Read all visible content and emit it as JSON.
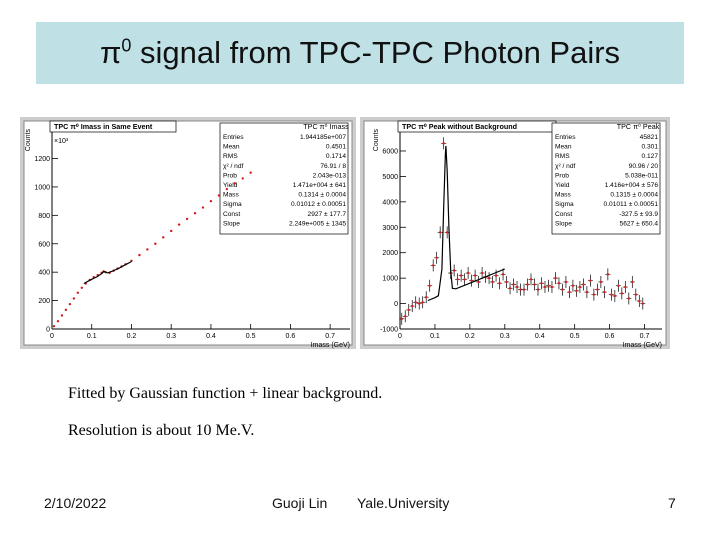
{
  "slide": {
    "title_main": "π",
    "title_sup": "0",
    "title_rest": " signal from TPC-TPC Photon Pairs",
    "text_lines": [
      "Fitted by Gaussian function + linear background.",
      "Resolution is about 10 Me.V."
    ],
    "footer": {
      "date": "2/10/2022",
      "author": "Guoji Lin",
      "org": "Yale.University",
      "page": "7"
    }
  },
  "chart_data": [
    {
      "type": "scatter",
      "title": "TPC π⁰ Imass in Same Event",
      "stats_title": "TPC π⁰ Imass",
      "xlabel": "Imass (GeV)",
      "ylabel": "Counts",
      "y_multiplier": "×10³",
      "xlim": [
        0,
        0.75
      ],
      "ylim": [
        0,
        1450
      ],
      "xticks": [
        0,
        0.1,
        0.2,
        0.3,
        0.4,
        0.5,
        0.6,
        0.7
      ],
      "xtick_labels": [
        "0",
        "0.1",
        "0.2",
        "0.3",
        "0.4",
        "0.5",
        "0.6",
        "0.7"
      ],
      "yticks": [
        0,
        200,
        400,
        600,
        800,
        1000,
        1200
      ],
      "ytick_labels": [
        "0",
        "200",
        "400",
        "600",
        "800",
        "1000",
        "1200"
      ],
      "stats": [
        [
          "Entries",
          "1.944185e+007"
        ],
        [
          "Mean",
          "0.4501"
        ],
        [
          "RMS",
          "0.1714"
        ],
        [
          "χ² / ndf",
          "76.91 / 8"
        ],
        [
          "Prob",
          "2.043e-013"
        ],
        [
          "Yield",
          "1.471e+004 ± 641"
        ],
        [
          "Mass",
          "0.1314 ± 0.0004"
        ],
        [
          "Sigma",
          "0.01012 ± 0.00051"
        ],
        [
          "Const",
          "2927 ± 177.7"
        ],
        [
          "Slope",
          "2.249e+005 ± 1345"
        ]
      ],
      "series": [
        {
          "x": [
            0.005,
            0.015,
            0.025,
            0.035,
            0.045,
            0.055,
            0.065,
            0.075,
            0.085,
            0.095,
            0.105,
            0.115,
            0.125,
            0.13,
            0.135,
            0.145,
            0.155,
            0.165,
            0.175,
            0.185,
            0.2,
            0.22,
            0.24,
            0.26,
            0.28,
            0.3,
            0.32,
            0.34,
            0.36,
            0.38,
            0.4,
            0.42,
            0.44,
            0.46,
            0.48,
            0.5
          ],
          "y": [
            20,
            55,
            95,
            135,
            175,
            215,
            255,
            290,
            320,
            345,
            365,
            380,
            395,
            405,
            400,
            395,
            410,
            425,
            440,
            455,
            480,
            520,
            560,
            600,
            645,
            690,
            735,
            775,
            815,
            855,
            900,
            940,
            985,
            1025,
            1060,
            1100
          ]
        }
      ],
      "fit": {
        "x": [
          0.08,
          0.1,
          0.115,
          0.125,
          0.13,
          0.135,
          0.14,
          0.15,
          0.17,
          0.2
        ],
        "y": [
          320,
          350,
          370,
          390,
          405,
          400,
          395,
          405,
          430,
          475
        ]
      }
    },
    {
      "type": "scatter",
      "title": "TPC π⁰ Peak without Background",
      "stats_title": "TPC π⁰ Peak",
      "xlabel": "Imass (GeV)",
      "ylabel": "Counts",
      "xlim": [
        0,
        0.75
      ],
      "ylim": [
        -1000,
        7100
      ],
      "xticks": [
        0,
        0.1,
        0.2,
        0.3,
        0.4,
        0.5,
        0.6,
        0.7
      ],
      "xtick_labels": [
        "0",
        "0.1",
        "0.2",
        "0.3",
        "0.4",
        "0.5",
        "0.6",
        "0.7"
      ],
      "yticks": [
        -1000,
        0,
        1000,
        2000,
        3000,
        4000,
        5000,
        6000
      ],
      "ytick_labels": [
        "-1000",
        "0",
        "1000",
        "2000",
        "3000",
        "4000",
        "5000",
        "6000"
      ],
      "stats": [
        [
          "Entries",
          "45821"
        ],
        [
          "Mean",
          "0.301"
        ],
        [
          "RMS",
          "0.127"
        ],
        [
          "χ² / ndf",
          "90.96 / 20"
        ],
        [
          "Prob",
          "5.038e-011"
        ],
        [
          "Yield",
          "1.416e+004 ± 576"
        ],
        [
          "Mass",
          "0.1315 ± 0.0004"
        ],
        [
          "Sigma",
          "0.01011 ± 0.00051"
        ],
        [
          "Const",
          "-327.5 ± 93.9"
        ],
        [
          "Slope",
          "5627 ± 650.4"
        ]
      ],
      "series": [
        {
          "x": [
            0.005,
            0.015,
            0.025,
            0.035,
            0.045,
            0.055,
            0.065,
            0.075,
            0.085,
            0.095,
            0.105,
            0.115,
            0.125,
            0.135,
            0.145,
            0.155,
            0.165,
            0.175,
            0.185,
            0.195,
            0.205,
            0.215,
            0.225,
            0.235,
            0.245,
            0.255,
            0.265,
            0.275,
            0.285,
            0.295,
            0.305,
            0.315,
            0.325,
            0.335,
            0.345,
            0.355,
            0.365,
            0.375,
            0.385,
            0.395,
            0.405,
            0.415,
            0.425,
            0.435,
            0.445,
            0.455,
            0.465,
            0.475,
            0.485,
            0.495,
            0.505,
            0.515,
            0.525,
            0.535,
            0.545,
            0.555,
            0.565,
            0.575,
            0.585,
            0.595,
            0.605,
            0.615,
            0.625,
            0.635,
            0.645,
            0.655,
            0.665,
            0.675,
            0.685,
            0.695
          ],
          "y": [
            -600,
            -500,
            -250,
            -100,
            50,
            0,
            50,
            250,
            700,
            1500,
            1800,
            2800,
            6300,
            2800,
            1200,
            1300,
            950,
            1100,
            950,
            1200,
            900,
            1100,
            850,
            1200,
            1050,
            1000,
            850,
            1100,
            800,
            1150,
            850,
            600,
            750,
            650,
            550,
            550,
            750,
            950,
            750,
            550,
            800,
            650,
            700,
            650,
            1000,
            800,
            550,
            850,
            450,
            700,
            500,
            650,
            750,
            450,
            900,
            350,
            550,
            850,
            450,
            1150,
            350,
            300,
            700,
            400,
            650,
            200,
            850,
            350,
            100,
            0
          ]
        }
      ],
      "fit": {
        "x": [
          0.08,
          0.1,
          0.11,
          0.12,
          0.125,
          0.13,
          0.1315,
          0.135,
          0.14,
          0.145,
          0.15,
          0.16,
          0.2,
          0.3
        ],
        "y": [
          120,
          230,
          310,
          1350,
          3800,
          5900,
          6200,
          5200,
          3000,
          1300,
          600,
          580,
          800,
          1360
        ]
      }
    }
  ]
}
